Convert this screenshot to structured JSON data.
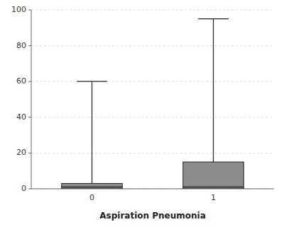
{
  "chart_data": {
    "type": "box",
    "xlabel": "Aspiration Pneumonia",
    "categories": [
      "0",
      "1"
    ],
    "boxes": [
      {
        "q1": 0,
        "median": 1,
        "q3": 3,
        "whisker_low": 0,
        "whisker_high": 60
      },
      {
        "q1": 0,
        "median": 1,
        "q3": 15,
        "whisker_low": 0,
        "whisker_high": 95
      }
    ],
    "color": "#8c8c8c",
    "ylim": [
      0,
      100
    ],
    "yticks": [
      0,
      20,
      40,
      60,
      80,
      100
    ],
    "grid": true
  }
}
